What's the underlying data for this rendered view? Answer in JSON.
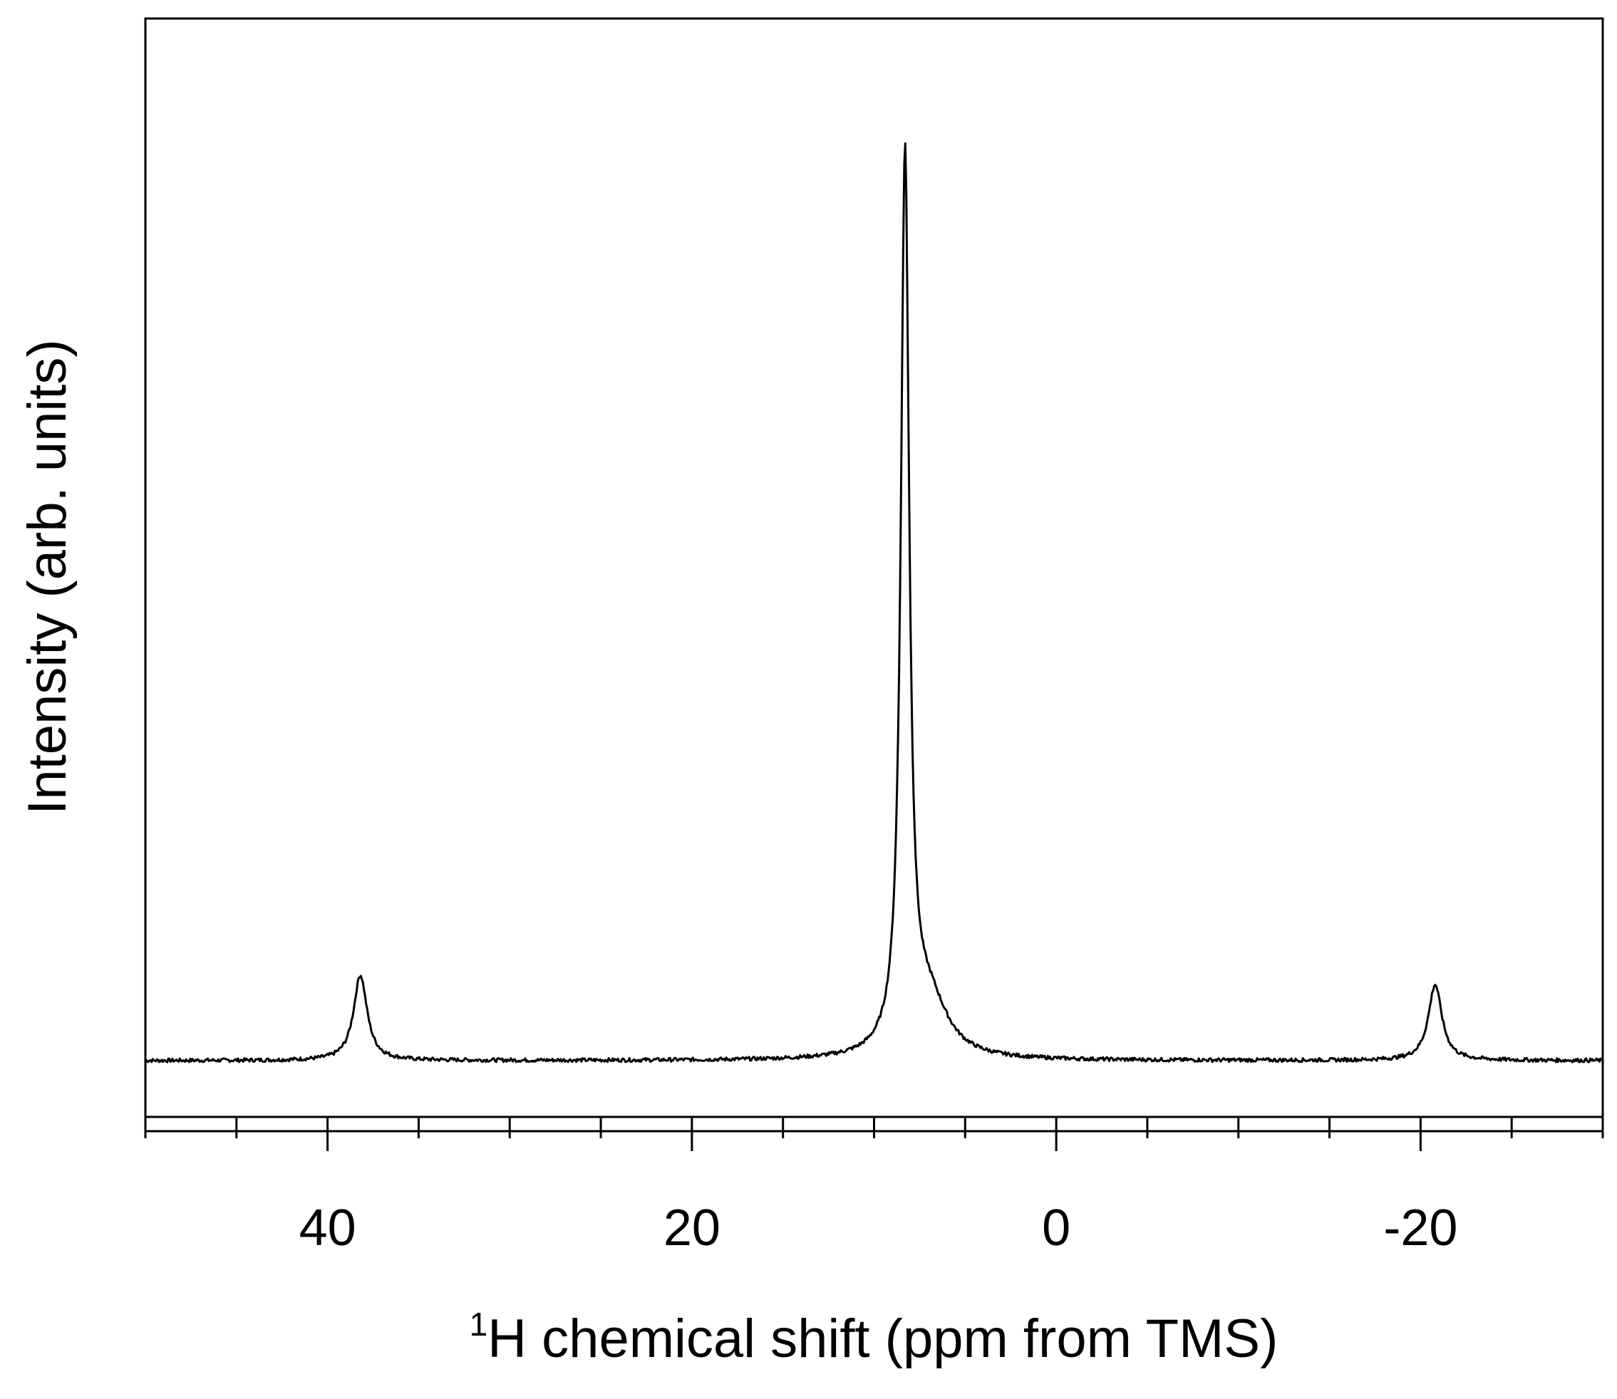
{
  "chart_data": {
    "type": "line",
    "xlabel_sup": "1",
    "xlabel": "H chemical shift (ppm from TMS)",
    "ylabel": "Intensity (arb. units)",
    "xlim": [
      50,
      -30
    ],
    "x_reversed": true,
    "ylim": [
      0,
      1.0
    ],
    "y_tick_labels": false,
    "x_ticks_major": [
      40,
      20,
      0,
      -20
    ],
    "x_ticks_minor": [
      50,
      45,
      35,
      30,
      25,
      15,
      10,
      5,
      -5,
      -10,
      -15,
      -25,
      -30
    ],
    "grid": false,
    "legend": "none",
    "series": [
      {
        "peaks": [
          {
            "x": 38.2,
            "height": 0.09,
            "width": 0.9
          },
          {
            "x": 8.3,
            "height": 0.94,
            "width": 0.55
          },
          {
            "x": 7.0,
            "height": 0.06,
            "width": 2.5
          },
          {
            "x": -20.8,
            "height": 0.08,
            "width": 0.9
          }
        ],
        "baseline": 0.006,
        "color": "#000000"
      }
    ]
  }
}
